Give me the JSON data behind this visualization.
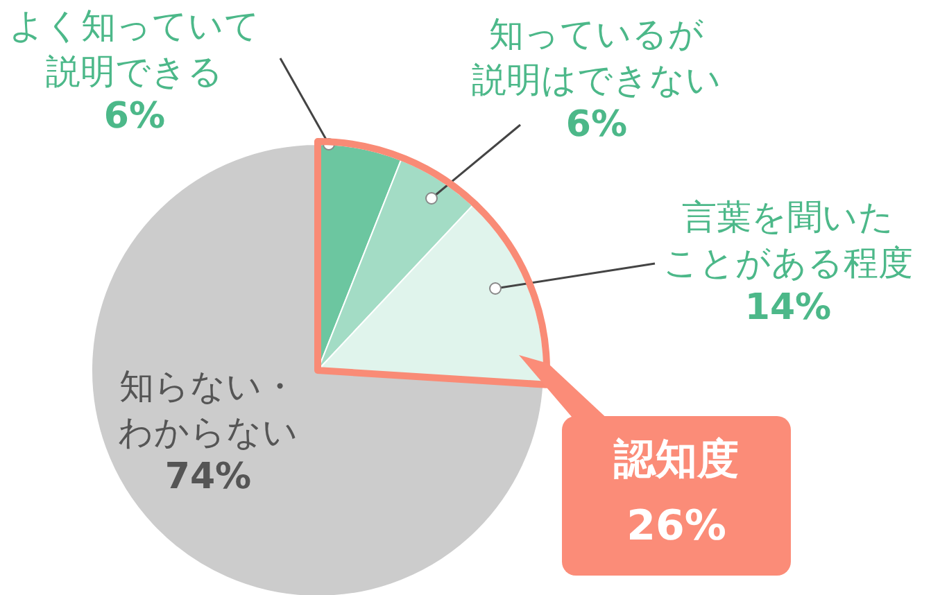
{
  "chart_data": {
    "type": "pie",
    "categories": [
      "よく知っていて説明できる",
      "知っているが説明はできない",
      "言葉を聞いたことがある程度",
      "知らない・わからない"
    ],
    "values": [
      6,
      6,
      14,
      74
    ],
    "value_labels": [
      "6%",
      "6%",
      "14%",
      "74%"
    ],
    "colors": [
      "#6cc6a0",
      "#a3dcc5",
      "#e0f4ec",
      "#cccccc"
    ],
    "annotations": [
      "認知度\n26%"
    ]
  }
}
